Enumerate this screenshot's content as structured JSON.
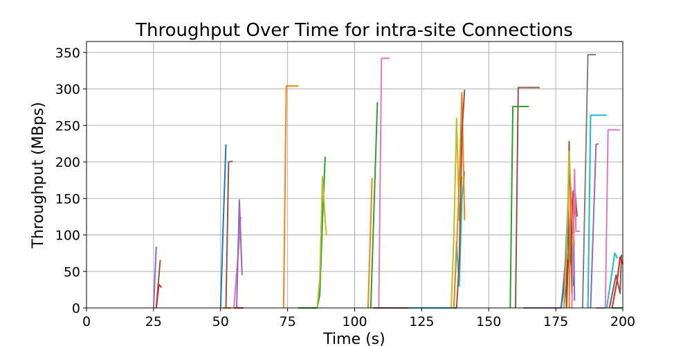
{
  "chart_data": {
    "type": "line",
    "title": "Throughput Over Time for intra-site Connections",
    "xlabel": "Time (s)",
    "ylabel": "Throughput (MBps)",
    "xlim": [
      0,
      200
    ],
    "ylim": [
      0,
      365
    ],
    "xticks": [
      0,
      25,
      50,
      75,
      100,
      125,
      150,
      175,
      200
    ],
    "yticks": [
      0,
      50,
      100,
      150,
      200,
      250,
      300,
      350
    ],
    "grid": true,
    "series": [
      {
        "color": "#9467bd",
        "points": [
          [
            25,
            0
          ],
          [
            26,
            84
          ]
        ]
      },
      {
        "color": "#8c564b",
        "points": [
          [
            26,
            0
          ],
          [
            27.5,
            66
          ]
        ]
      },
      {
        "color": "#d62728",
        "points": [
          [
            26,
            0
          ],
          [
            27,
            32
          ],
          [
            28,
            28
          ]
        ]
      },
      {
        "color": "#1f77b4",
        "points": [
          [
            50,
            0
          ],
          [
            51,
            115
          ],
          [
            52,
            224
          ]
        ]
      },
      {
        "color": "#ff7f0e",
        "points": [
          [
            51,
            0
          ],
          [
            54,
            0
          ]
        ]
      },
      {
        "color": "#8c564b",
        "points": [
          [
            52,
            0
          ],
          [
            53,
            200
          ],
          [
            54.5,
            201
          ]
        ]
      },
      {
        "color": "#d62728",
        "points": [
          [
            55,
            0
          ],
          [
            58,
            0
          ],
          [
            58.5,
            0
          ]
        ]
      },
      {
        "color": "#bcbd22",
        "points": [
          [
            55,
            0
          ],
          [
            56,
            50
          ],
          [
            57,
            95
          ],
          [
            57.5,
            100
          ]
        ]
      },
      {
        "color": "#e377c2",
        "points": [
          [
            55,
            0
          ],
          [
            56.5,
            70
          ],
          [
            57.5,
            125
          ]
        ]
      },
      {
        "color": "#9467bd",
        "points": [
          [
            56,
            0
          ],
          [
            57,
            148
          ],
          [
            58,
            45
          ]
        ]
      },
      {
        "color": "#ff7f0e",
        "points": [
          [
            73.5,
            0
          ],
          [
            74.5,
            304
          ],
          [
            79,
            304
          ]
        ]
      },
      {
        "color": "#2ca02c",
        "points": [
          [
            79,
            0
          ],
          [
            86,
            0
          ],
          [
            87,
            18
          ],
          [
            88,
            120
          ],
          [
            89,
            207
          ]
        ]
      },
      {
        "color": "#bcbd22",
        "points": [
          [
            86,
            0
          ],
          [
            87,
            40
          ],
          [
            88,
            180
          ],
          [
            89,
            120
          ],
          [
            89.5,
            100
          ]
        ]
      },
      {
        "color": "#ff7f0e",
        "points": [
          [
            105,
            0
          ],
          [
            106.5,
            178
          ]
        ]
      },
      {
        "color": "#2ca02c",
        "points": [
          [
            106,
            0
          ],
          [
            108.5,
            282
          ]
        ]
      },
      {
        "color": "#e377c2",
        "points": [
          [
            109,
            0
          ],
          [
            110,
            342
          ],
          [
            113,
            342
          ]
        ]
      },
      {
        "color": "#8c564b",
        "points": [
          [
            107,
            0
          ],
          [
            138,
            0
          ]
        ]
      },
      {
        "color": "#17becf",
        "points": [
          [
            120,
            0
          ],
          [
            137,
            0
          ],
          [
            138,
            90
          ],
          [
            139,
            30
          ],
          [
            140,
            150
          ],
          [
            141,
            187
          ]
        ]
      },
      {
        "color": "#bcbd22",
        "points": [
          [
            136,
            0
          ],
          [
            137,
            100
          ],
          [
            138,
            260
          ],
          [
            139,
            120
          ],
          [
            140,
            180
          ]
        ]
      },
      {
        "color": "#ff7f0e",
        "points": [
          [
            137,
            0
          ],
          [
            138,
            80
          ],
          [
            139,
            170
          ],
          [
            140,
            295
          ],
          [
            141,
            120
          ]
        ]
      },
      {
        "color": "#8c564b",
        "points": [
          [
            138,
            0
          ],
          [
            139,
            60
          ],
          [
            140,
            240
          ],
          [
            141,
            299
          ]
        ]
      },
      {
        "color": "#2ca02c",
        "points": [
          [
            158,
            0
          ],
          [
            159,
            276
          ],
          [
            165,
            276
          ]
        ]
      },
      {
        "color": "#8c564b",
        "points": [
          [
            160,
            0
          ],
          [
            161,
            302
          ],
          [
            169,
            302
          ]
        ]
      },
      {
        "color": "#7f7f7f",
        "points": [
          [
            163,
            0
          ],
          [
            177,
            0
          ]
        ]
      },
      {
        "color": "#9467bd",
        "points": [
          [
            170,
            0
          ],
          [
            177,
            0
          ],
          [
            178.5,
            60
          ],
          [
            179.5,
            140
          ],
          [
            180.5,
            60
          ],
          [
            181.5,
            160
          ],
          [
            182,
            10
          ]
        ]
      },
      {
        "color": "#1f77b4",
        "points": [
          [
            177,
            0
          ],
          [
            178.5,
            40
          ],
          [
            179.5,
            110
          ],
          [
            180,
            70
          ]
        ]
      },
      {
        "color": "#8c564b",
        "points": [
          [
            178,
            0
          ],
          [
            179,
            30
          ],
          [
            180,
            228
          ],
          [
            181,
            20
          ],
          [
            182,
            165
          ],
          [
            183,
            125
          ]
        ]
      },
      {
        "color": "#bcbd22",
        "points": [
          [
            178,
            0
          ],
          [
            179,
            75
          ],
          [
            180,
            215
          ],
          [
            181,
            130
          ],
          [
            182,
            85
          ]
        ]
      },
      {
        "color": "#2ca02c",
        "points": [
          [
            179,
            0
          ],
          [
            179.5,
            50
          ],
          [
            180.5,
            118
          ],
          [
            181.5,
            30
          ]
        ]
      },
      {
        "color": "#d62728",
        "points": [
          [
            179,
            0
          ],
          [
            179.5,
            65
          ],
          [
            180.5,
            62
          ],
          [
            181.5,
            160
          ],
          [
            182.5,
            120
          ]
        ]
      },
      {
        "color": "#ff7f0e",
        "points": [
          [
            180,
            0
          ],
          [
            180.5,
            165
          ],
          [
            181.5,
            100
          ],
          [
            182,
            105
          ]
        ]
      },
      {
        "color": "#e377c2",
        "points": [
          [
            181,
            0
          ],
          [
            182,
            190
          ],
          [
            182.5,
            105
          ],
          [
            184,
            105
          ]
        ]
      },
      {
        "color": "#7f7f7f",
        "points": [
          [
            185,
            0
          ],
          [
            187,
            347
          ],
          [
            190,
            347
          ]
        ]
      },
      {
        "color": "#17becf",
        "points": [
          [
            187,
            0
          ],
          [
            188,
            264
          ],
          [
            194,
            264
          ]
        ]
      },
      {
        "color": "#9467bd",
        "points": [
          [
            188,
            0
          ],
          [
            190,
            224
          ],
          [
            191,
            225
          ]
        ]
      },
      {
        "color": "#e377c2",
        "points": [
          [
            190,
            0
          ],
          [
            193.5,
            0
          ],
          [
            194.5,
            244
          ],
          [
            199,
            244
          ]
        ]
      },
      {
        "color": "#17becf",
        "points": [
          [
            194,
            0
          ],
          [
            197,
            75
          ],
          [
            198,
            68
          ]
        ]
      },
      {
        "color": "#8c564b",
        "points": [
          [
            195,
            0
          ],
          [
            197.5,
            45
          ],
          [
            199,
            20
          ],
          [
            199.5,
            73
          ]
        ]
      },
      {
        "color": "#d62728",
        "points": [
          [
            196,
            0
          ],
          [
            197,
            20
          ],
          [
            198,
            40
          ],
          [
            199,
            70
          ],
          [
            200,
            60
          ]
        ]
      },
      {
        "color": "#2ca02c",
        "points": [
          [
            196,
            0
          ],
          [
            200,
            0
          ]
        ]
      }
    ]
  }
}
